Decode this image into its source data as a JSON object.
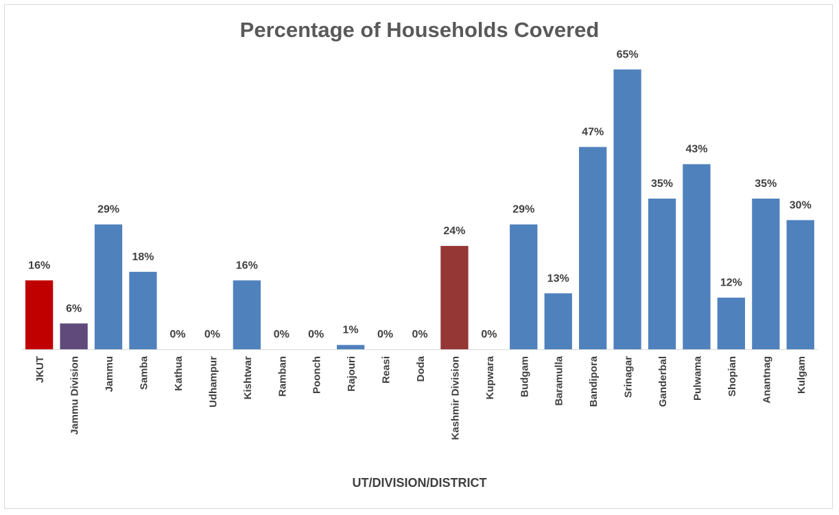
{
  "chart_data": {
    "type": "bar",
    "title": "Percentage of Households Covered",
    "xlabel": "UT/DIVISION/DISTRICT",
    "ylabel": "",
    "ylim": [
      0,
      70
    ],
    "grid": false,
    "legend": "none",
    "categories": [
      "JKUT",
      "Jammu Division",
      "Jammu",
      "Samba",
      "Kathua",
      "Udhampur",
      "Kishtwar",
      "Ramban",
      "Poonch",
      "Rajouri",
      "Reasi",
      "Doda",
      "Kashmir Division",
      "Kupwara",
      "Budgam",
      "Baramulla",
      "Bandipora",
      "Srinagar",
      "Ganderbal",
      "Pulwama",
      "Shopian",
      "Anantnag",
      "Kulgam"
    ],
    "values": [
      16,
      6,
      29,
      18,
      0,
      0,
      16,
      0,
      0,
      1,
      0,
      0,
      24,
      0,
      29,
      13,
      47,
      65,
      35,
      43,
      12,
      35,
      30
    ],
    "value_labels": [
      "16%",
      "6%",
      "29%",
      "18%",
      "0%",
      "0%",
      "16%",
      "0%",
      "0%",
      "1%",
      "0%",
      "0%",
      "24%",
      "0%",
      "29%",
      "13%",
      "47%",
      "65%",
      "35%",
      "43%",
      "12%",
      "35%",
      "30%"
    ],
    "colors": [
      "#c00000",
      "#604a7b",
      "#4f81bd",
      "#4f81bd",
      "#4f81bd",
      "#4f81bd",
      "#4f81bd",
      "#4f81bd",
      "#4f81bd",
      "#4f81bd",
      "#4f81bd",
      "#4f81bd",
      "#953735",
      "#4f81bd",
      "#4f81bd",
      "#4f81bd",
      "#4f81bd",
      "#4f81bd",
      "#4f81bd",
      "#4f81bd",
      "#4f81bd",
      "#4f81bd",
      "#4f81bd"
    ]
  }
}
